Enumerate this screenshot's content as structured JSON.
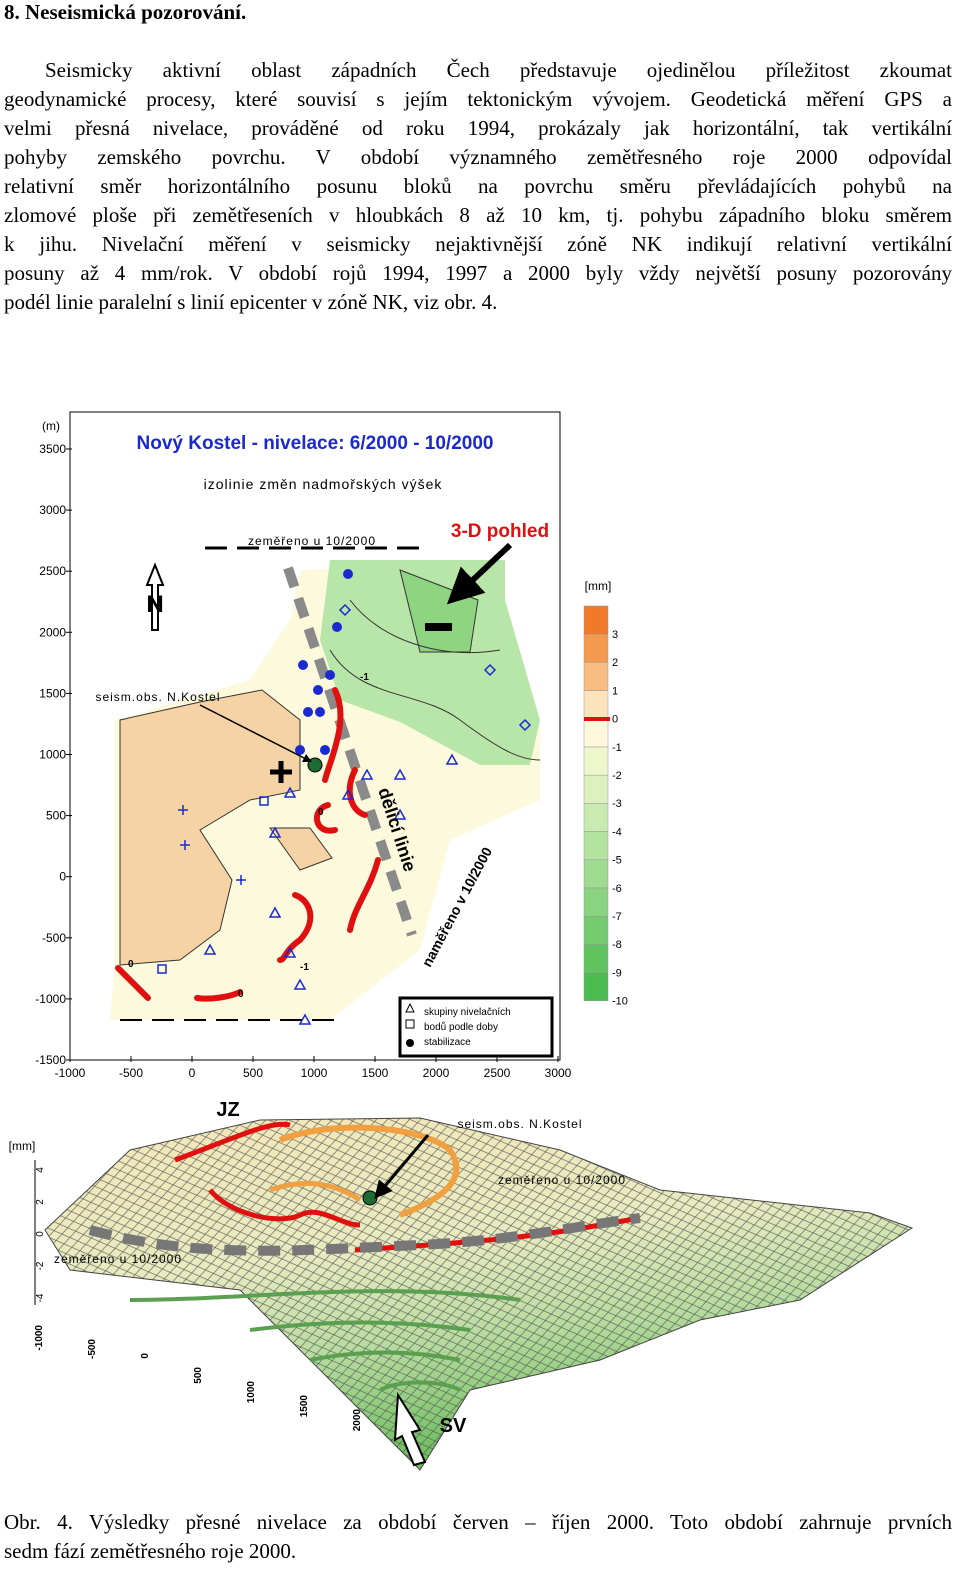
{
  "heading": "8. Neseismická pozorování.",
  "paragraph": [
    "Seismicky aktivní oblast západních Čech představuje ojedinělou příležitost zkoumat",
    "geodynamické procesy, které souvisí s jejím tektonickým vývojem. Geodetická měření GPS a",
    "velmi přesná nivelace, prováděné od roku 1994, prokázaly jak horizontální, tak vertikální",
    "pohyby zemského povrchu. V období významného zemětřesného roje 2000 odpovídal",
    "relativní směr horizontálního posunu bloků na povrchu směru převládajících pohybů na",
    "zlomové ploše při zemětřeseních v hloubkách 8 až 10 km, tj. pohybu západního bloku směrem",
    "k jihu. Nivelační měření v seismicky nejaktivnější zóně NK indikují relativní vertikální",
    "posuny až 4 mm/rok. V období rojů 1994, 1997 a 2000 byly vždy největší posuny  pozorovány",
    "podél linie paralelní s linií epicenter v zóně NK,  viz obr. 4."
  ],
  "map": {
    "y_unit": "(m)",
    "title": "Nový Kostel - nivelace:  6/2000 - 10/2000",
    "subtitle": "izolinie změn nadmořských výšek",
    "measured_top": "zeměřeno u 10/2000",
    "view_label": "3-D pohled",
    "north": "N",
    "observatory": "seism.obs. N.Kostel",
    "divide_line": "dělicí linie",
    "measured_diag": "naměřeno v 10/2000",
    "iso_labels": [
      "-1",
      "0",
      "-1",
      "0",
      "0"
    ],
    "legend": [
      "skupiny nivelačních",
      "bodů podle doby",
      "stabilizace"
    ],
    "yticks": [
      3500,
      3000,
      2500,
      2000,
      1500,
      1000,
      500,
      0,
      -500,
      -1000,
      -1500
    ],
    "xticks": [
      -1000,
      -500,
      0,
      500,
      1000,
      1500,
      2000,
      2500,
      3000
    ],
    "scale_unit": "[mm]",
    "scale": [
      3,
      2,
      1,
      0,
      -1,
      -2,
      -3,
      -4,
      -5,
      -6,
      -7,
      -8,
      -9,
      -10
    ]
  },
  "view3d": {
    "west": "JZ",
    "east": "SV",
    "unit": "[mm]",
    "observatory": "seism.obs. N.Kostel",
    "measured_right": "zeměřeno u 10/2000",
    "measured_left": "zeměřeno u 10/2000",
    "zticks": [
      4,
      2,
      0,
      -2,
      -4
    ],
    "xticks": [
      -1000,
      -500,
      0,
      500,
      1000,
      1500,
      2000
    ]
  },
  "caption": [
    "Obr. 4. Výsledky přesné nivelace za období červen – říjen 2000. Toto období zahrnuje prvních",
    "sedm fází zemětřesného roje 2000."
  ]
}
